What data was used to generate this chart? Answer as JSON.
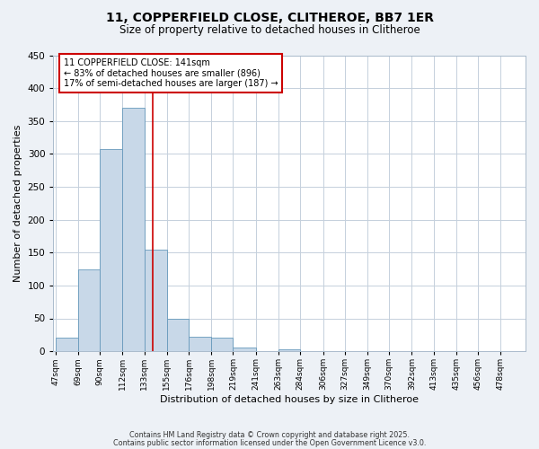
{
  "title": "11, COPPERFIELD CLOSE, CLITHEROE, BB7 1ER",
  "subtitle": "Size of property relative to detached houses in Clitheroe",
  "xlabel": "Distribution of detached houses by size in Clitheroe",
  "ylabel": "Number of detached properties",
  "bin_labels": [
    "47sqm",
    "69sqm",
    "90sqm",
    "112sqm",
    "133sqm",
    "155sqm",
    "176sqm",
    "198sqm",
    "219sqm",
    "241sqm",
    "263sqm",
    "284sqm",
    "306sqm",
    "327sqm",
    "349sqm",
    "370sqm",
    "392sqm",
    "413sqm",
    "435sqm",
    "456sqm",
    "478sqm"
  ],
  "bin_edges": [
    47,
    69,
    90,
    112,
    133,
    155,
    176,
    198,
    219,
    241,
    263,
    284,
    306,
    327,
    349,
    370,
    392,
    413,
    435,
    456,
    478
  ],
  "bar_heights": [
    20,
    125,
    308,
    370,
    155,
    50,
    22,
    20,
    5,
    0,
    3,
    0,
    0,
    0,
    0,
    0,
    0,
    0,
    0,
    0,
    0
  ],
  "bar_color": "#c8d8e8",
  "bar_edgecolor": "#6699bb",
  "vline_x": 141,
  "vline_color": "#cc0000",
  "annotation_title": "11 COPPERFIELD CLOSE: 141sqm",
  "annotation_line1": "← 83% of detached houses are smaller (896)",
  "annotation_line2": "17% of semi-detached houses are larger (187) →",
  "annotation_box_color": "#cc0000",
  "ylim": [
    0,
    450
  ],
  "yticks": [
    0,
    50,
    100,
    150,
    200,
    250,
    300,
    350,
    400,
    450
  ],
  "footer1": "Contains HM Land Registry data © Crown copyright and database right 2025.",
  "footer2": "Contains public sector information licensed under the Open Government Licence v3.0.",
  "bg_color": "#edf1f6",
  "plot_bg_color": "#ffffff",
  "grid_color": "#c5d0dc"
}
